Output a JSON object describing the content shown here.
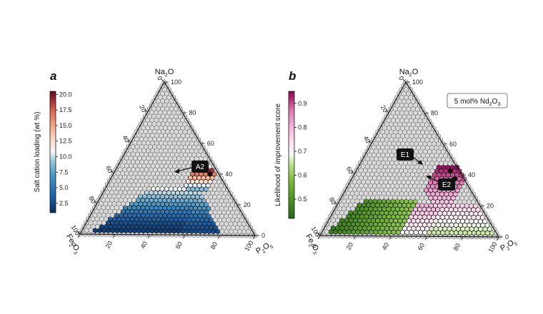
{
  "chart_data": [
    {
      "type": "ternary",
      "panel": "a",
      "vertices": {
        "top": "Na2O",
        "left": "Fe2O3",
        "right": "P2O5"
      },
      "ticks": [
        0,
        20,
        40,
        60,
        80,
        100
      ],
      "grid_spacing_pct": 2.5,
      "colorbar": {
        "label": "Salt cation loading (wt %)",
        "colormap": "RdBu_r",
        "range": [
          1.0,
          20.5
        ],
        "ticks": [
          2.5,
          5.0,
          7.5,
          10.0,
          12.5,
          15.0,
          17.5,
          20.0
        ]
      },
      "regions": [
        {
          "description": "colored region",
          "na2o_range": [
            2.5,
            30
          ],
          "p2o5_range_at_na2o_0": [
            5,
            80
          ]
        },
        {
          "description": "high-value tip",
          "na2o_range": [
            30,
            42.5
          ],
          "p2o5_range": [
            45,
            55
          ]
        }
      ],
      "annotations": [
        {
          "label": "A2",
          "na2o": 40,
          "p2o5": 55,
          "fe2o3": 5
        }
      ]
    },
    {
      "type": "ternary",
      "panel": "b",
      "vertices": {
        "top": "Na2O",
        "left": "Fe2O3",
        "right": "P2O5"
      },
      "ticks": [
        0,
        20,
        40,
        60,
        80,
        100
      ],
      "grid_spacing_pct": 2.5,
      "colorbar": {
        "label": "Likelihood of improvement score",
        "colormap": "PiYG_r",
        "range": [
          0.42,
          0.95
        ],
        "ticks": [
          0.5,
          0.6,
          0.7,
          0.8,
          0.9
        ]
      },
      "note": "5 mol% Nd2O3",
      "annotations": [
        {
          "label": "E1",
          "na2o": 42.5,
          "p2o5": 52.5,
          "fe2o3": 5
        },
        {
          "label": "E2",
          "na2o": 37.5,
          "p2o5": 57.5,
          "fe2o3": 5
        }
      ]
    }
  ],
  "labels": {
    "a": {
      "letter": "a",
      "top_pre": "Na",
      "top_sub": "2",
      "top_post": "O",
      "left_pre": "Fe",
      "left_sub1": "2",
      "left_mid": "O",
      "left_sub2": "3",
      "right_pre": "P",
      "right_sub1": "2",
      "right_mid": "O",
      "right_sub2": "5",
      "colorbar_title": "Salt cation loading (wt %)",
      "colorbar_ticks": [
        "2.5",
        "5.0",
        "7.5",
        "10.0",
        "12.5",
        "15.0",
        "17.5",
        "20.0"
      ],
      "callouts": [
        "A2"
      ]
    },
    "b": {
      "letter": "b",
      "top_pre": "Na",
      "top_sub": "2",
      "top_post": "O",
      "left_pre": "Fe",
      "left_sub1": "2",
      "left_mid": "O",
      "left_sub2": "3",
      "right_pre": "P",
      "right_sub1": "2",
      "right_mid": "O",
      "right_sub2": "5",
      "colorbar_title": "Likelihood of improvement score",
      "colorbar_ticks": [
        "0.5",
        "0.6",
        "0.7",
        "0.8",
        "0.9"
      ],
      "callouts": [
        "E1",
        "E2"
      ],
      "note_pre": "5 mol% Nd",
      "note_sub1": "2",
      "note_mid": "O",
      "note_sub2": "3"
    }
  },
  "tick_labels": [
    "0",
    "20",
    "40",
    "60",
    "80",
    "100"
  ],
  "colors": {
    "hex_fill_empty": "#d9d9d9",
    "hex_edge": "#222222",
    "frame": "#111111"
  }
}
